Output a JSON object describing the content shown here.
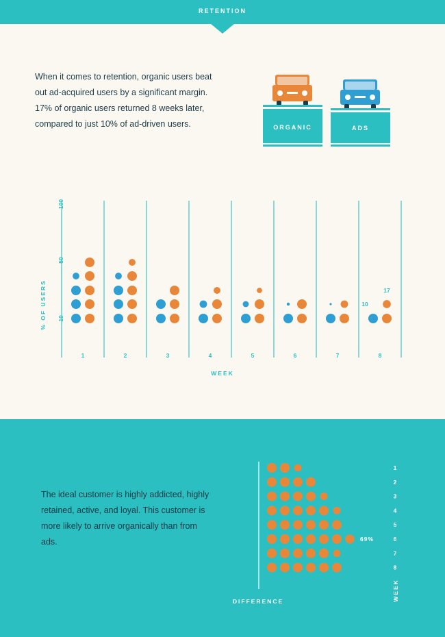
{
  "header": {
    "title": "RETENTION"
  },
  "intro": {
    "text": "When it comes to retention, organic users beat out ad-acquired users by a significant margin. 17% of organic users returned 8 weeks later, compared to just 10% of ad-driven users."
  },
  "legend": {
    "organic_label": "ORGANIC",
    "ads_label": "ADS"
  },
  "colors": {
    "teal": "#2bbfc2",
    "organic": "#e8873a",
    "ads": "#2f9fd3",
    "text_dark": "#1d3c4a",
    "background": "#fbf8f1"
  },
  "icons": [
    "organic-car-icon",
    "ads-car-icon"
  ],
  "footer": {
    "text": "The ideal customer is highly addicted, highly retained, active, and loyal. This customer is more likely to arrive organically than from ads."
  },
  "chart_data": [
    {
      "type": "scatter",
      "title": "",
      "xlabel": "WEEK",
      "ylabel": "% OF USERS",
      "yticks": [
        "10",
        "50",
        "100"
      ],
      "categories": [
        "1",
        "2",
        "3",
        "4",
        "5",
        "6",
        "7",
        "8"
      ],
      "series": [
        {
          "name": "ADS",
          "values": [
            3.5,
            3.5,
            2,
            1.6,
            1.4,
            1.1,
            1.05,
            1
          ]
        },
        {
          "name": "ORGANIC",
          "values": [
            5,
            4.5,
            3,
            2.5,
            2.3,
            2,
            1.6,
            1.7
          ]
        }
      ],
      "data_labels": {
        "organic_week8": "17",
        "ads_week8": "10"
      },
      "grid": true
    },
    {
      "type": "scatter",
      "xlabel": "DIFFERENCE",
      "ylabel": "WEEK",
      "categories": [
        "1",
        "2",
        "3",
        "4",
        "5",
        "6",
        "7",
        "8"
      ],
      "values": [
        2.6,
        4,
        4.6,
        5.6,
        6,
        6.9,
        5.6,
        6
      ],
      "annotation": "69%"
    }
  ]
}
